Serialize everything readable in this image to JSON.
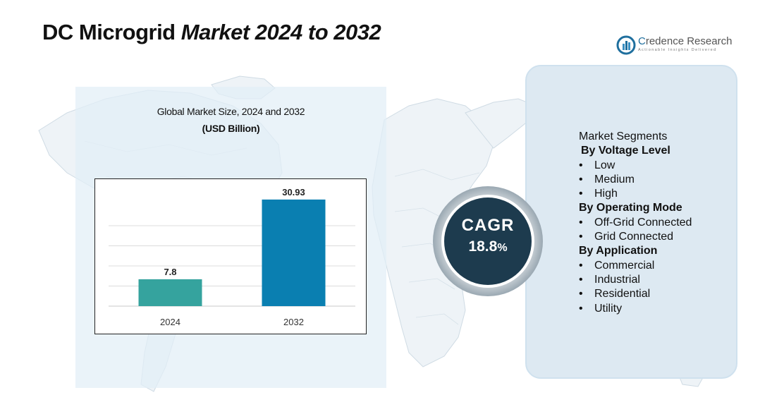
{
  "header": {
    "title_plain": "DC Microgrid",
    "title_italic": "Market 2024 to 2032"
  },
  "logo": {
    "name_accent": "C",
    "name_rest": "redence Research",
    "tagline": "Actionable Insights Delivered"
  },
  "chart_title": "Global Market Size, 2024 and 2032",
  "chart_subtitle": "(USD Billion)",
  "chart_data": {
    "type": "bar",
    "categories": [
      "2024",
      "2032"
    ],
    "values": [
      7.8,
      30.93
    ],
    "value_labels": [
      "7.8",
      "30.93"
    ],
    "colors": [
      "#35a39e",
      "#0a7fb1"
    ],
    "ylim": [
      0,
      35
    ],
    "grid": true,
    "xlabel": "",
    "ylabel": ""
  },
  "cagr": {
    "label": "CAGR",
    "value": "18.8",
    "unit": "%"
  },
  "segments": {
    "heading": "Market Segments",
    "groups": [
      {
        "title": "By Voltage Level",
        "items": [
          "Low",
          "Medium",
          "High"
        ]
      },
      {
        "title": "By Operating Mode",
        "items": [
          "Off-Grid Connected",
          "Grid Connected"
        ]
      },
      {
        "title": "By Application",
        "items": [
          "Commercial",
          "Industrial",
          "Residential",
          "Utility"
        ]
      }
    ]
  },
  "colors": {
    "panel_left": "#e2eef6",
    "panel_right": "#dde9f2",
    "cagr_circle": "#1d3b4e",
    "brand_blue": "#1f6f9e"
  }
}
